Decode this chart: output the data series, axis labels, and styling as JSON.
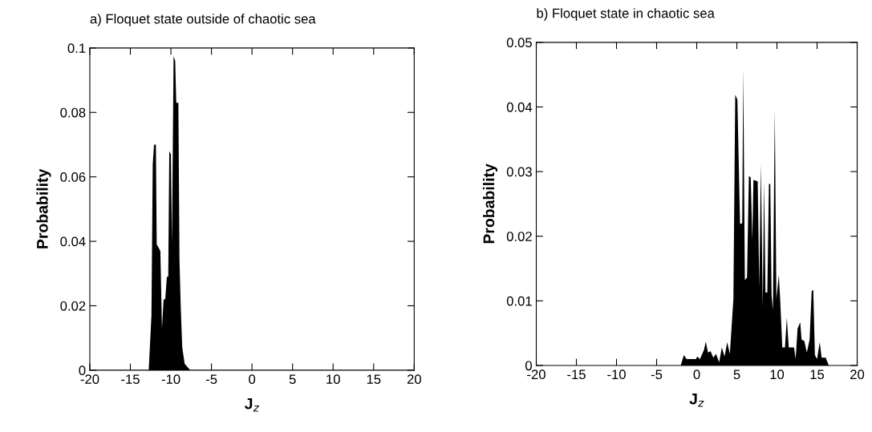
{
  "chart_data": [
    {
      "type": "area",
      "title": "a) Floquet state outside of chaotic sea",
      "xlabel": "J$_{z}$",
      "ylabel": "Probability",
      "xlim": [
        -20,
        20
      ],
      "xticks": [
        -20,
        -15,
        -10,
        -5,
        0,
        5,
        10,
        15,
        20
      ],
      "ylim": [
        0,
        0.1
      ],
      "yticks": [
        0,
        0.02,
        0.04,
        0.06,
        0.08,
        0.1
      ],
      "grid": false,
      "legend": false,
      "series": [
        {
          "color": "#000000",
          "x": [
            -12.74,
            -12.4,
            -12.24,
            -12.08,
            -11.85,
            -11.75,
            -11.5,
            -11.3,
            -11.1,
            -10.9,
            -10.7,
            -10.5,
            -10.33,
            -10.2,
            -10.0,
            -9.87,
            -9.67,
            -9.47,
            -9.34,
            -9.08,
            -8.94,
            -8.78,
            -8.6,
            -8.3,
            -7.6
          ],
          "values": [
            0,
            0.017,
            0.064,
            0.07,
            0.07,
            0.039,
            0.038,
            0.037,
            0.013,
            0.022,
            0.022,
            0.029,
            0.029,
            0.068,
            0.067,
            0.039,
            0.0975,
            0.096,
            0.083,
            0.083,
            0.034,
            0.019,
            0.007,
            0.002,
            0
          ]
        }
      ]
    },
    {
      "type": "area",
      "title": "b) Floquet state in chaotic sea",
      "xlabel": "J$_{z}$",
      "ylabel": "Probability",
      "xlim": [
        -20,
        20
      ],
      "xticks": [
        -20,
        -15,
        -10,
        -5,
        0,
        5,
        10,
        15,
        20
      ],
      "ylim": [
        0,
        0.05
      ],
      "yticks": [
        0,
        0.01,
        0.02,
        0.03,
        0.04,
        0.05
      ],
      "grid": false,
      "legend": false,
      "series": [
        {
          "color": "#000000",
          "x": [
            -2.0,
            -1.6,
            -1.27,
            -0.1,
            0.07,
            0.4,
            0.9,
            1.13,
            1.4,
            1.73,
            2.07,
            2.4,
            2.8,
            3.13,
            3.47,
            3.8,
            4.13,
            4.57,
            4.8,
            5.07,
            5.4,
            5.67,
            5.8,
            6.0,
            6.27,
            6.5,
            6.73,
            6.93,
            7.07,
            7.6,
            7.8,
            8.0,
            8.23,
            8.4,
            8.57,
            8.8,
            9.0,
            9.17,
            9.33,
            9.5,
            9.73,
            9.93,
            10.23,
            10.4,
            10.67,
            11.0,
            11.23,
            11.47,
            12.13,
            12.33,
            12.57,
            12.9,
            13.07,
            13.4,
            13.73,
            14.07,
            14.33,
            14.53,
            14.73,
            15.0,
            15.33,
            15.57,
            16.07,
            16.47
          ],
          "values": [
            0,
            0.0016,
            0.001,
            0.001,
            0.0014,
            0.001,
            0.0024,
            0.0037,
            0.002,
            0.0022,
            0.0012,
            0.0018,
            0.0005,
            0.0028,
            0.0014,
            0.0036,
            0.0018,
            0.0103,
            0.0419,
            0.0411,
            0.0219,
            0.022,
            0.0459,
            0.0132,
            0.0136,
            0.0293,
            0.0291,
            0.0194,
            0.0287,
            0.0285,
            0.0121,
            0.0313,
            0.009,
            0.0286,
            0.0113,
            0.0113,
            0.0281,
            0.0281,
            0.0109,
            0.0086,
            0.0397,
            0.0103,
            0.014,
            0.0103,
            0.0028,
            0.0028,
            0.0074,
            0.0028,
            0.0028,
            0.001,
            0.0057,
            0.0067,
            0.004,
            0.0038,
            0.002,
            0.004,
            0.0115,
            0.0117,
            0.0016,
            0.001,
            0.0036,
            0.0012,
            0.0012,
            0
          ]
        }
      ]
    }
  ]
}
